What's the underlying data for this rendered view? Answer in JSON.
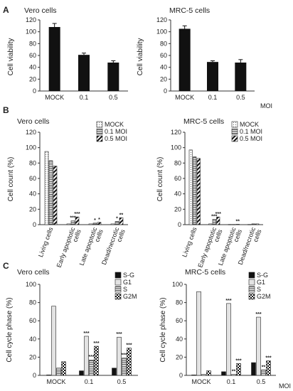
{
  "chart_data": [
    {
      "id": "A1",
      "panel_label": "A",
      "type": "bar",
      "title": "Vero cells",
      "ylabel": "Cell viability",
      "xlabel": "MOI",
      "categories": [
        "MOCK",
        "0.1",
        "0.5"
      ],
      "values": [
        108,
        61,
        48
      ],
      "errors": [
        6,
        3,
        3
      ],
      "ylim": [
        0,
        120
      ],
      "yticks": [
        "0",
        "20",
        "40",
        "60",
        "80",
        "100",
        "120"
      ],
      "fill": "black",
      "colors": {
        "bar": "#111111"
      }
    },
    {
      "id": "A2",
      "type": "bar",
      "title": "MRC-5 cells",
      "ylabel": "Cell viability",
      "xlabel": "MOI",
      "categories": [
        "MOCK",
        "0.1",
        "0.5"
      ],
      "values": [
        105,
        49,
        48
      ],
      "errors": [
        5,
        2,
        5
      ],
      "ylim": [
        0,
        120
      ],
      "yticks": [
        "0",
        "20",
        "40",
        "60",
        "80",
        "100",
        "120"
      ],
      "fill": "black",
      "colors": {
        "bar": "#111111"
      }
    },
    {
      "id": "B1",
      "panel_label": "B",
      "type": "bar",
      "title": "Vero cells",
      "ylabel": "Cell count (%)",
      "categories": [
        "Living cells",
        "Early apoptotic cells",
        "Late apoptotic cells",
        "Dead/necrotic cells"
      ],
      "series": [
        {
          "name": "MOCK",
          "values": [
            95,
            1,
            1,
            1
          ],
          "pattern": "dots"
        },
        {
          "name": "0.1 MOI",
          "values": [
            83,
            5,
            2,
            4
          ],
          "pattern": "hlines"
        },
        {
          "name": "0.5 MOI",
          "values": [
            76,
            10,
            3,
            9
          ],
          "pattern": "diag"
        }
      ],
      "annotations": [
        {
          "category": 1,
          "series": 1,
          "text": "***"
        },
        {
          "category": 1,
          "series": 2,
          "text": "***"
        },
        {
          "category": 2,
          "series": 1,
          "text": "*"
        },
        {
          "category": 2,
          "series": 2,
          "text": "*"
        },
        {
          "category": 3,
          "series": 1,
          "text": "*"
        },
        {
          "category": 3,
          "series": 2,
          "text": "**"
        }
      ],
      "ylim": [
        0,
        120
      ],
      "yticks": [
        "0",
        "20",
        "40",
        "60",
        "80",
        "100",
        "120"
      ],
      "legend": "top-right"
    },
    {
      "id": "B2",
      "type": "bar",
      "title": "MRC-5 cells",
      "ylabel": "Cell count (%)",
      "categories": [
        "Living cells",
        "Early apoptotic cells",
        "Late apoptotic cells",
        "Dead/necrotic cells"
      ],
      "series": [
        {
          "name": "MOCK",
          "values": [
            97,
            1,
            0.3,
            0.3
          ],
          "pattern": "dots"
        },
        {
          "name": "0.1 MOI",
          "values": [
            88,
            7,
            0.3,
            1
          ],
          "pattern": "hlines"
        },
        {
          "name": "0.5 MOI",
          "values": [
            86,
            10,
            0.5,
            1
          ],
          "pattern": "diag"
        }
      ],
      "annotations": [
        {
          "category": 1,
          "series": 1,
          "text": "***"
        },
        {
          "category": 1,
          "series": 2,
          "text": "***"
        },
        {
          "category": 2,
          "series": 2,
          "text": "**"
        }
      ],
      "ylim": [
        0,
        120
      ],
      "yticks": [
        "0",
        "20",
        "40",
        "60",
        "80",
        "100",
        "120"
      ],
      "legend": "top-right"
    },
    {
      "id": "C1",
      "panel_label": "C",
      "type": "bar",
      "title": "Vero cells",
      "ylabel": "Cell cycle phase (%)",
      "xlabel": "MOI",
      "categories": [
        "MOCK",
        "0.1",
        "0.5"
      ],
      "series": [
        {
          "name": "S-G",
          "values": [
            0.5,
            5,
            8
          ],
          "pattern": "black"
        },
        {
          "name": "G1",
          "values": [
            76,
            43,
            42
          ],
          "pattern": "lightgray"
        },
        {
          "name": "S",
          "values": [
            8,
            17,
            19
          ],
          "pattern": "hlines"
        },
        {
          "name": "G2M",
          "values": [
            15,
            32,
            30
          ],
          "pattern": "checker"
        }
      ],
      "annotations": [
        {
          "category": 1,
          "series": 1,
          "text": "***"
        },
        {
          "category": 1,
          "series": 2,
          "text": "***"
        },
        {
          "category": 1,
          "series": 3,
          "text": "***"
        },
        {
          "category": 2,
          "series": 1,
          "text": "***"
        },
        {
          "category": 2,
          "series": 2,
          "text": "***"
        },
        {
          "category": 2,
          "series": 3,
          "text": "***"
        }
      ],
      "ylim": [
        0,
        100
      ],
      "yticks": [
        "0",
        "20",
        "40",
        "60",
        "80",
        "100"
      ],
      "legend": "top-right"
    },
    {
      "id": "C2",
      "type": "bar",
      "title": "MRC-5 cells",
      "ylabel": "Cell cycle phase (%)",
      "xlabel": "MOI",
      "categories": [
        "MOCK",
        "0.1",
        "0.5"
      ],
      "series": [
        {
          "name": "S-G",
          "values": [
            0.5,
            4,
            14
          ],
          "pattern": "black"
        },
        {
          "name": "G1",
          "values": [
            92,
            79,
            64
          ],
          "pattern": "lightgray"
        },
        {
          "name": "S",
          "values": [
            1,
            1,
            6
          ],
          "pattern": "hlines"
        },
        {
          "name": "G2M",
          "values": [
            5,
            13,
            16
          ],
          "pattern": "checker"
        }
      ],
      "annotations": [
        {
          "category": 1,
          "series": 1,
          "text": "***"
        },
        {
          "category": 1,
          "series": 2,
          "text": "**"
        },
        {
          "category": 1,
          "series": 3,
          "text": "***"
        },
        {
          "category": 2,
          "series": 1,
          "text": "***"
        },
        {
          "category": 2,
          "series": 2,
          "text": "**"
        },
        {
          "category": 2,
          "series": 3,
          "text": "***"
        }
      ],
      "ylim": [
        0,
        100
      ],
      "yticks": [
        "0",
        "20",
        "40",
        "60",
        "80",
        "100"
      ],
      "legend": "top-right"
    }
  ]
}
